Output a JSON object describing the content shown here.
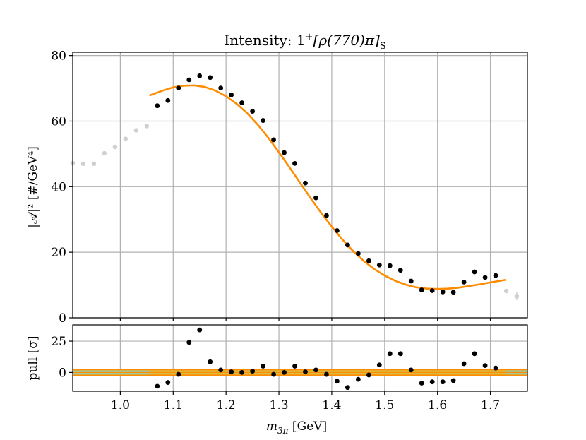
{
  "chart_data": {
    "type": "scatter",
    "title": {
      "main": "Intensity: 1",
      "sup": "+",
      "body": "[ρ(770)π]",
      "sub": "S"
    },
    "colors": {
      "data": "#000000",
      "outside_range": "#d0d0d0",
      "fit": "#ff8c00",
      "grid": "#b0b0b0",
      "band_outer": "#ff8c00",
      "band_middle": "#cccc55",
      "band_inner_left": "#7fdfcc"
    },
    "x_axis": {
      "label_main": "m",
      "label_sub": "3π",
      "label_unit": " [GeV]",
      "range": [
        0.91,
        1.77
      ],
      "ticks": [
        1.0,
        1.1,
        1.2,
        1.3,
        1.4,
        1.5,
        1.6,
        1.7
      ],
      "tick_labels": [
        "1.0",
        "1.1",
        "1.2",
        "1.3",
        "1.4",
        "1.5",
        "1.6",
        "1.7"
      ]
    },
    "top_panel": {
      "ylabel_text": "|𝒜|² [#/GeV⁴]",
      "ylim": [
        0,
        81
      ],
      "y_ticks": [
        0,
        20,
        40,
        60,
        80
      ],
      "y_tick_labels": [
        "0",
        "20",
        "40",
        "60",
        "80"
      ],
      "grid": true,
      "series": [
        {
          "role": "excluded",
          "x": [
            0.91,
            0.93,
            0.95,
            0.97,
            0.99,
            1.01,
            1.03,
            1.05,
            1.73,
            1.75
          ],
          "y": [
            47.2,
            47.0,
            47.0,
            50.2,
            52.1,
            54.6,
            57.2,
            58.5,
            8.2,
            6.6
          ],
          "err": [
            0,
            0,
            0,
            0,
            0,
            0,
            0,
            0,
            0,
            1.2
          ]
        },
        {
          "role": "data",
          "x": [
            1.07,
            1.09,
            1.11,
            1.13,
            1.15,
            1.17,
            1.19,
            1.21,
            1.23,
            1.25,
            1.27,
            1.29,
            1.31,
            1.33,
            1.35,
            1.37,
            1.39,
            1.41,
            1.43,
            1.45,
            1.47,
            1.49,
            1.51,
            1.53,
            1.55,
            1.57,
            1.59,
            1.61,
            1.63,
            1.65,
            1.67,
            1.69,
            1.71
          ],
          "y": [
            64.7,
            66.3,
            70.1,
            72.6,
            73.8,
            73.3,
            70.1,
            68.0,
            65.6,
            63.0,
            60.2,
            54.3,
            50.4,
            47.1,
            41.1,
            36.6,
            31.2,
            26.6,
            22.2,
            19.6,
            17.4,
            16.1,
            15.9,
            14.5,
            11.2,
            8.5,
            8.3,
            7.9,
            7.8,
            10.9,
            14.0,
            12.3,
            12.9
          ]
        },
        {
          "role": "fit",
          "x": [
            1.055,
            1.08,
            1.1,
            1.12,
            1.14,
            1.16,
            1.18,
            1.2,
            1.22,
            1.24,
            1.26,
            1.28,
            1.3,
            1.32,
            1.34,
            1.36,
            1.38,
            1.4,
            1.42,
            1.44,
            1.46,
            1.48,
            1.5,
            1.52,
            1.54,
            1.56,
            1.58,
            1.6,
            1.62,
            1.64,
            1.66,
            1.68,
            1.7,
            1.73
          ],
          "y": [
            67.8,
            69.3,
            70.3,
            70.8,
            70.9,
            70.4,
            69.3,
            67.6,
            65.3,
            62.4,
            58.9,
            54.9,
            50.5,
            45.9,
            41.2,
            36.5,
            32.0,
            27.8,
            23.9,
            20.4,
            17.4,
            14.9,
            12.9,
            11.3,
            10.1,
            9.3,
            8.9,
            8.8,
            8.9,
            9.2,
            9.7,
            10.2,
            10.8,
            11.6
          ]
        }
      ]
    },
    "bottom_panel": {
      "ylabel_text": "pull [σ]",
      "ylim": [
        -15,
        38
      ],
      "y_ticks": [
        0,
        25
      ],
      "y_tick_labels": [
        "0",
        "25"
      ],
      "grid": true,
      "band_x_range": [
        0.91,
        1.77
      ],
      "series": [
        {
          "role": "pull",
          "x": [
            1.07,
            1.09,
            1.11,
            1.13,
            1.15,
            1.17,
            1.19,
            1.21,
            1.23,
            1.25,
            1.27,
            1.29,
            1.31,
            1.33,
            1.35,
            1.37,
            1.39,
            1.41,
            1.43,
            1.45,
            1.47,
            1.49,
            1.51,
            1.53,
            1.55,
            1.57,
            1.59,
            1.61,
            1.63,
            1.65,
            1.67,
            1.69,
            1.71
          ],
          "y": [
            -11.0,
            -8.0,
            -1.5,
            24.0,
            34.0,
            8.5,
            2.0,
            0.5,
            0.0,
            1.0,
            5.0,
            -1.5,
            0.0,
            5.0,
            0.5,
            2.0,
            -1.5,
            -7.0,
            -12.0,
            -5.5,
            -2.0,
            6.0,
            15.0,
            15.0,
            2.0,
            -8.5,
            -7.5,
            -7.5,
            -6.5,
            7.0,
            15.0,
            5.5,
            3.5
          ]
        }
      ]
    }
  }
}
